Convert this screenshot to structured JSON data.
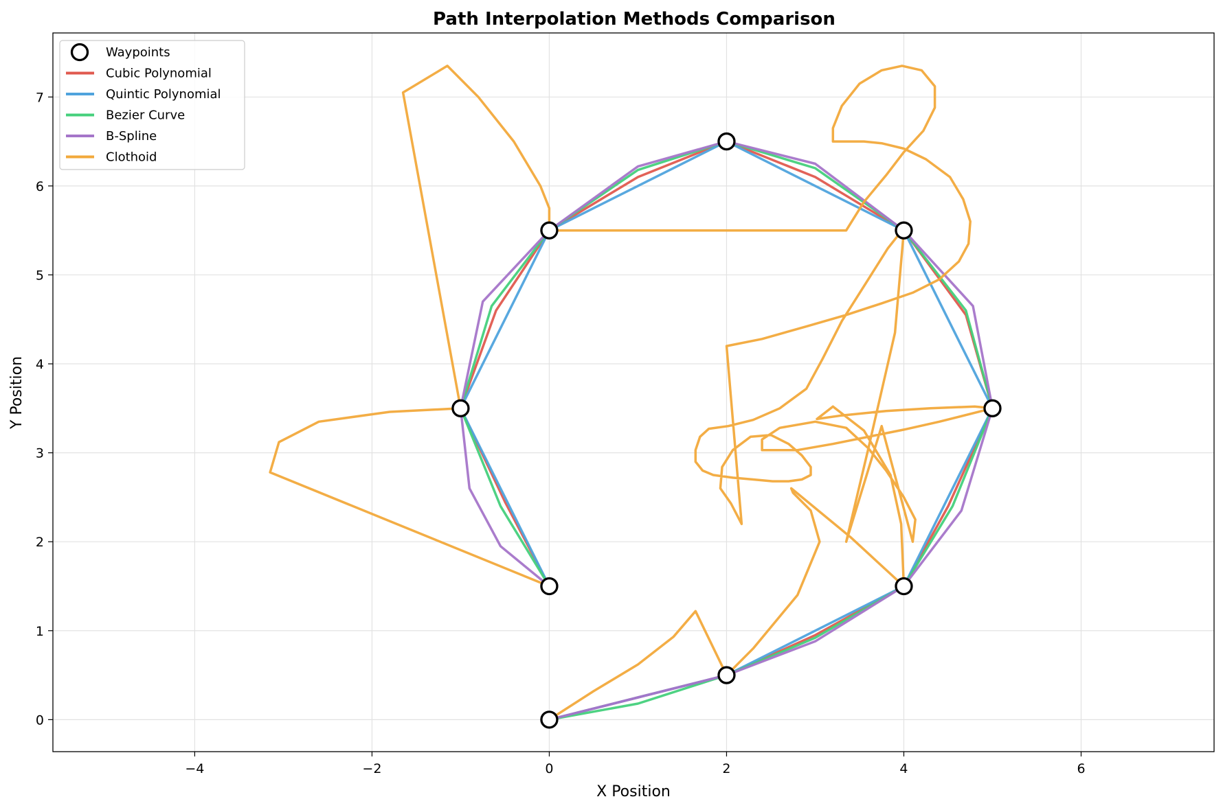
{
  "chart_data": {
    "type": "line",
    "title": "Path Interpolation Methods Comparison",
    "xlabel": "X Position",
    "ylabel": "Y Position",
    "xlim": [
      -5.6,
      7.5
    ],
    "ylim": [
      -0.36,
      7.72
    ],
    "xticks": [
      -4,
      -2,
      0,
      2,
      4,
      6
    ],
    "yticks": [
      0,
      1,
      2,
      3,
      4,
      5,
      6,
      7
    ],
    "xtick_labels": [
      "−4",
      "−2",
      "0",
      "2",
      "4",
      "6"
    ],
    "ytick_labels": [
      "0",
      "1",
      "2",
      "3",
      "4",
      "5",
      "6",
      "7"
    ],
    "grid": true,
    "legend_position": "top-left",
    "waypoints": {
      "name": "Waypoints",
      "x": [
        0,
        2,
        4,
        5,
        4,
        2,
        0,
        -1,
        0
      ],
      "y": [
        0,
        0.5,
        1.5,
        3.5,
        5.5,
        6.5,
        5.5,
        3.5,
        1.5
      ]
    },
    "series": [
      {
        "name": "Cubic Polynomial",
        "color": "#e05a4f",
        "x": [
          0,
          1,
          2,
          3,
          4,
          4.5,
          5,
          4.7,
          4,
          3,
          2,
          1,
          0,
          -0.6,
          -1,
          -0.5,
          0
        ],
        "y": [
          0,
          0.25,
          0.5,
          0.95,
          1.5,
          2.4,
          3.5,
          4.55,
          5.5,
          6.1,
          6.5,
          6.1,
          5.5,
          4.6,
          3.5,
          2.45,
          1.5
        ]
      },
      {
        "name": "Quintic Polynomial",
        "color": "#4fa3dd",
        "x": [
          0,
          1,
          2,
          3,
          4,
          5,
          4,
          2,
          0,
          -1,
          0
        ],
        "y": [
          0,
          0.25,
          0.5,
          1.0,
          1.5,
          3.5,
          5.5,
          6.5,
          5.5,
          3.5,
          1.5
        ]
      },
      {
        "name": "Bezier Curve",
        "color": "#45d07c",
        "x": [
          0,
          1,
          2,
          3,
          4,
          4.55,
          5,
          4.7,
          4,
          3,
          2,
          1,
          0,
          -0.65,
          -1,
          -0.55,
          0
        ],
        "y": [
          0,
          0.18,
          0.5,
          0.92,
          1.5,
          2.4,
          3.5,
          4.6,
          5.5,
          6.2,
          6.5,
          6.18,
          5.5,
          4.65,
          3.5,
          2.4,
          1.5
        ]
      },
      {
        "name": "B-Spline",
        "color": "#a575c9",
        "x": [
          0,
          1,
          2,
          3,
          4,
          4.65,
          5,
          4.78,
          4,
          3,
          2,
          1,
          0,
          -0.75,
          -1,
          -0.9,
          -0.55,
          0
        ],
        "y": [
          0,
          0.25,
          0.5,
          0.88,
          1.5,
          2.35,
          3.5,
          4.65,
          5.5,
          6.25,
          6.5,
          6.22,
          5.5,
          4.7,
          3.5,
          2.6,
          1.95,
          1.5
        ]
      },
      {
        "name": "Clothoid",
        "color": "#f2a93b",
        "x": [
          0,
          0.5,
          1.0,
          1.4,
          1.65,
          2.0,
          2.3,
          2.8,
          3.05,
          2.95,
          2.75,
          2.73,
          3.4,
          4.0,
          3.97,
          3.85,
          3.55,
          3.2,
          3.02,
          3.3,
          3.8,
          4.3,
          4.8,
          5.0,
          4.4,
          4.0,
          3.6,
          3.2,
          2.8,
          2.4,
          2.4,
          2.6,
          3.0,
          3.35,
          3.6,
          3.8,
          4.0,
          4.13,
          4.1,
          3.75,
          3.35,
          3.6,
          3.9,
          4.0,
          3.98,
          3.82,
          3.58,
          3.3,
          3.08,
          2.9,
          2.6,
          2.3,
          2.02,
          1.8,
          1.7,
          1.65,
          1.65,
          1.73,
          1.85,
          2.07,
          2.3,
          2.52,
          2.7,
          2.85,
          2.95,
          2.95,
          2.85,
          2.7,
          2.5,
          2.27,
          2.07,
          1.95,
          1.93,
          2.05,
          2.17,
          2.0,
          2.4,
          2.9,
          3.35,
          3.75,
          4.1,
          4.4,
          4.62,
          4.73,
          4.75,
          4.67,
          4.52,
          4.25,
          4.0,
          3.75,
          3.55,
          3.35,
          3.2,
          3.2,
          3.3,
          3.5,
          3.75,
          3.98,
          4.2,
          4.35,
          4.35,
          4.22,
          4.0,
          3.8,
          3.55,
          3.35,
          0,
          0,
          -0.1,
          -0.4,
          -0.8,
          -1.15,
          -1.65,
          -1.0,
          -1.8,
          -2.6,
          -3.05,
          -3.15,
          0
        ],
        "y": [
          0,
          0.32,
          0.62,
          0.93,
          1.22,
          0.5,
          0.8,
          1.4,
          2.0,
          2.35,
          2.55,
          2.6,
          2.05,
          1.5,
          2.2,
          2.75,
          3.25,
          3.52,
          3.38,
          3.42,
          3.47,
          3.5,
          3.52,
          3.5,
          3.35,
          3.26,
          3.18,
          3.1,
          3.03,
          3.03,
          3.15,
          3.28,
          3.35,
          3.28,
          3.05,
          2.8,
          2.5,
          2.25,
          2.0,
          3.3,
          2.0,
          3.05,
          4.35,
          5.5,
          5.5,
          5.3,
          4.92,
          4.48,
          4.05,
          3.72,
          3.5,
          3.37,
          3.3,
          3.27,
          3.18,
          3.03,
          2.9,
          2.8,
          2.75,
          2.72,
          2.7,
          2.68,
          2.68,
          2.7,
          2.75,
          2.84,
          2.97,
          3.1,
          3.2,
          3.18,
          3.03,
          2.84,
          2.6,
          2.43,
          2.2,
          4.2,
          4.28,
          4.42,
          4.55,
          4.68,
          4.8,
          4.95,
          5.15,
          5.35,
          5.6,
          5.85,
          6.1,
          6.3,
          6.42,
          6.48,
          6.5,
          6.5,
          6.5,
          6.65,
          6.9,
          7.15,
          7.3,
          7.35,
          7.3,
          7.12,
          6.88,
          6.62,
          6.38,
          6.12,
          5.82,
          5.5,
          5.5,
          5.75,
          6.0,
          6.5,
          7.0,
          7.35,
          7.05,
          3.5,
          3.46,
          3.35,
          3.12,
          2.78,
          1.5
        ]
      }
    ]
  }
}
